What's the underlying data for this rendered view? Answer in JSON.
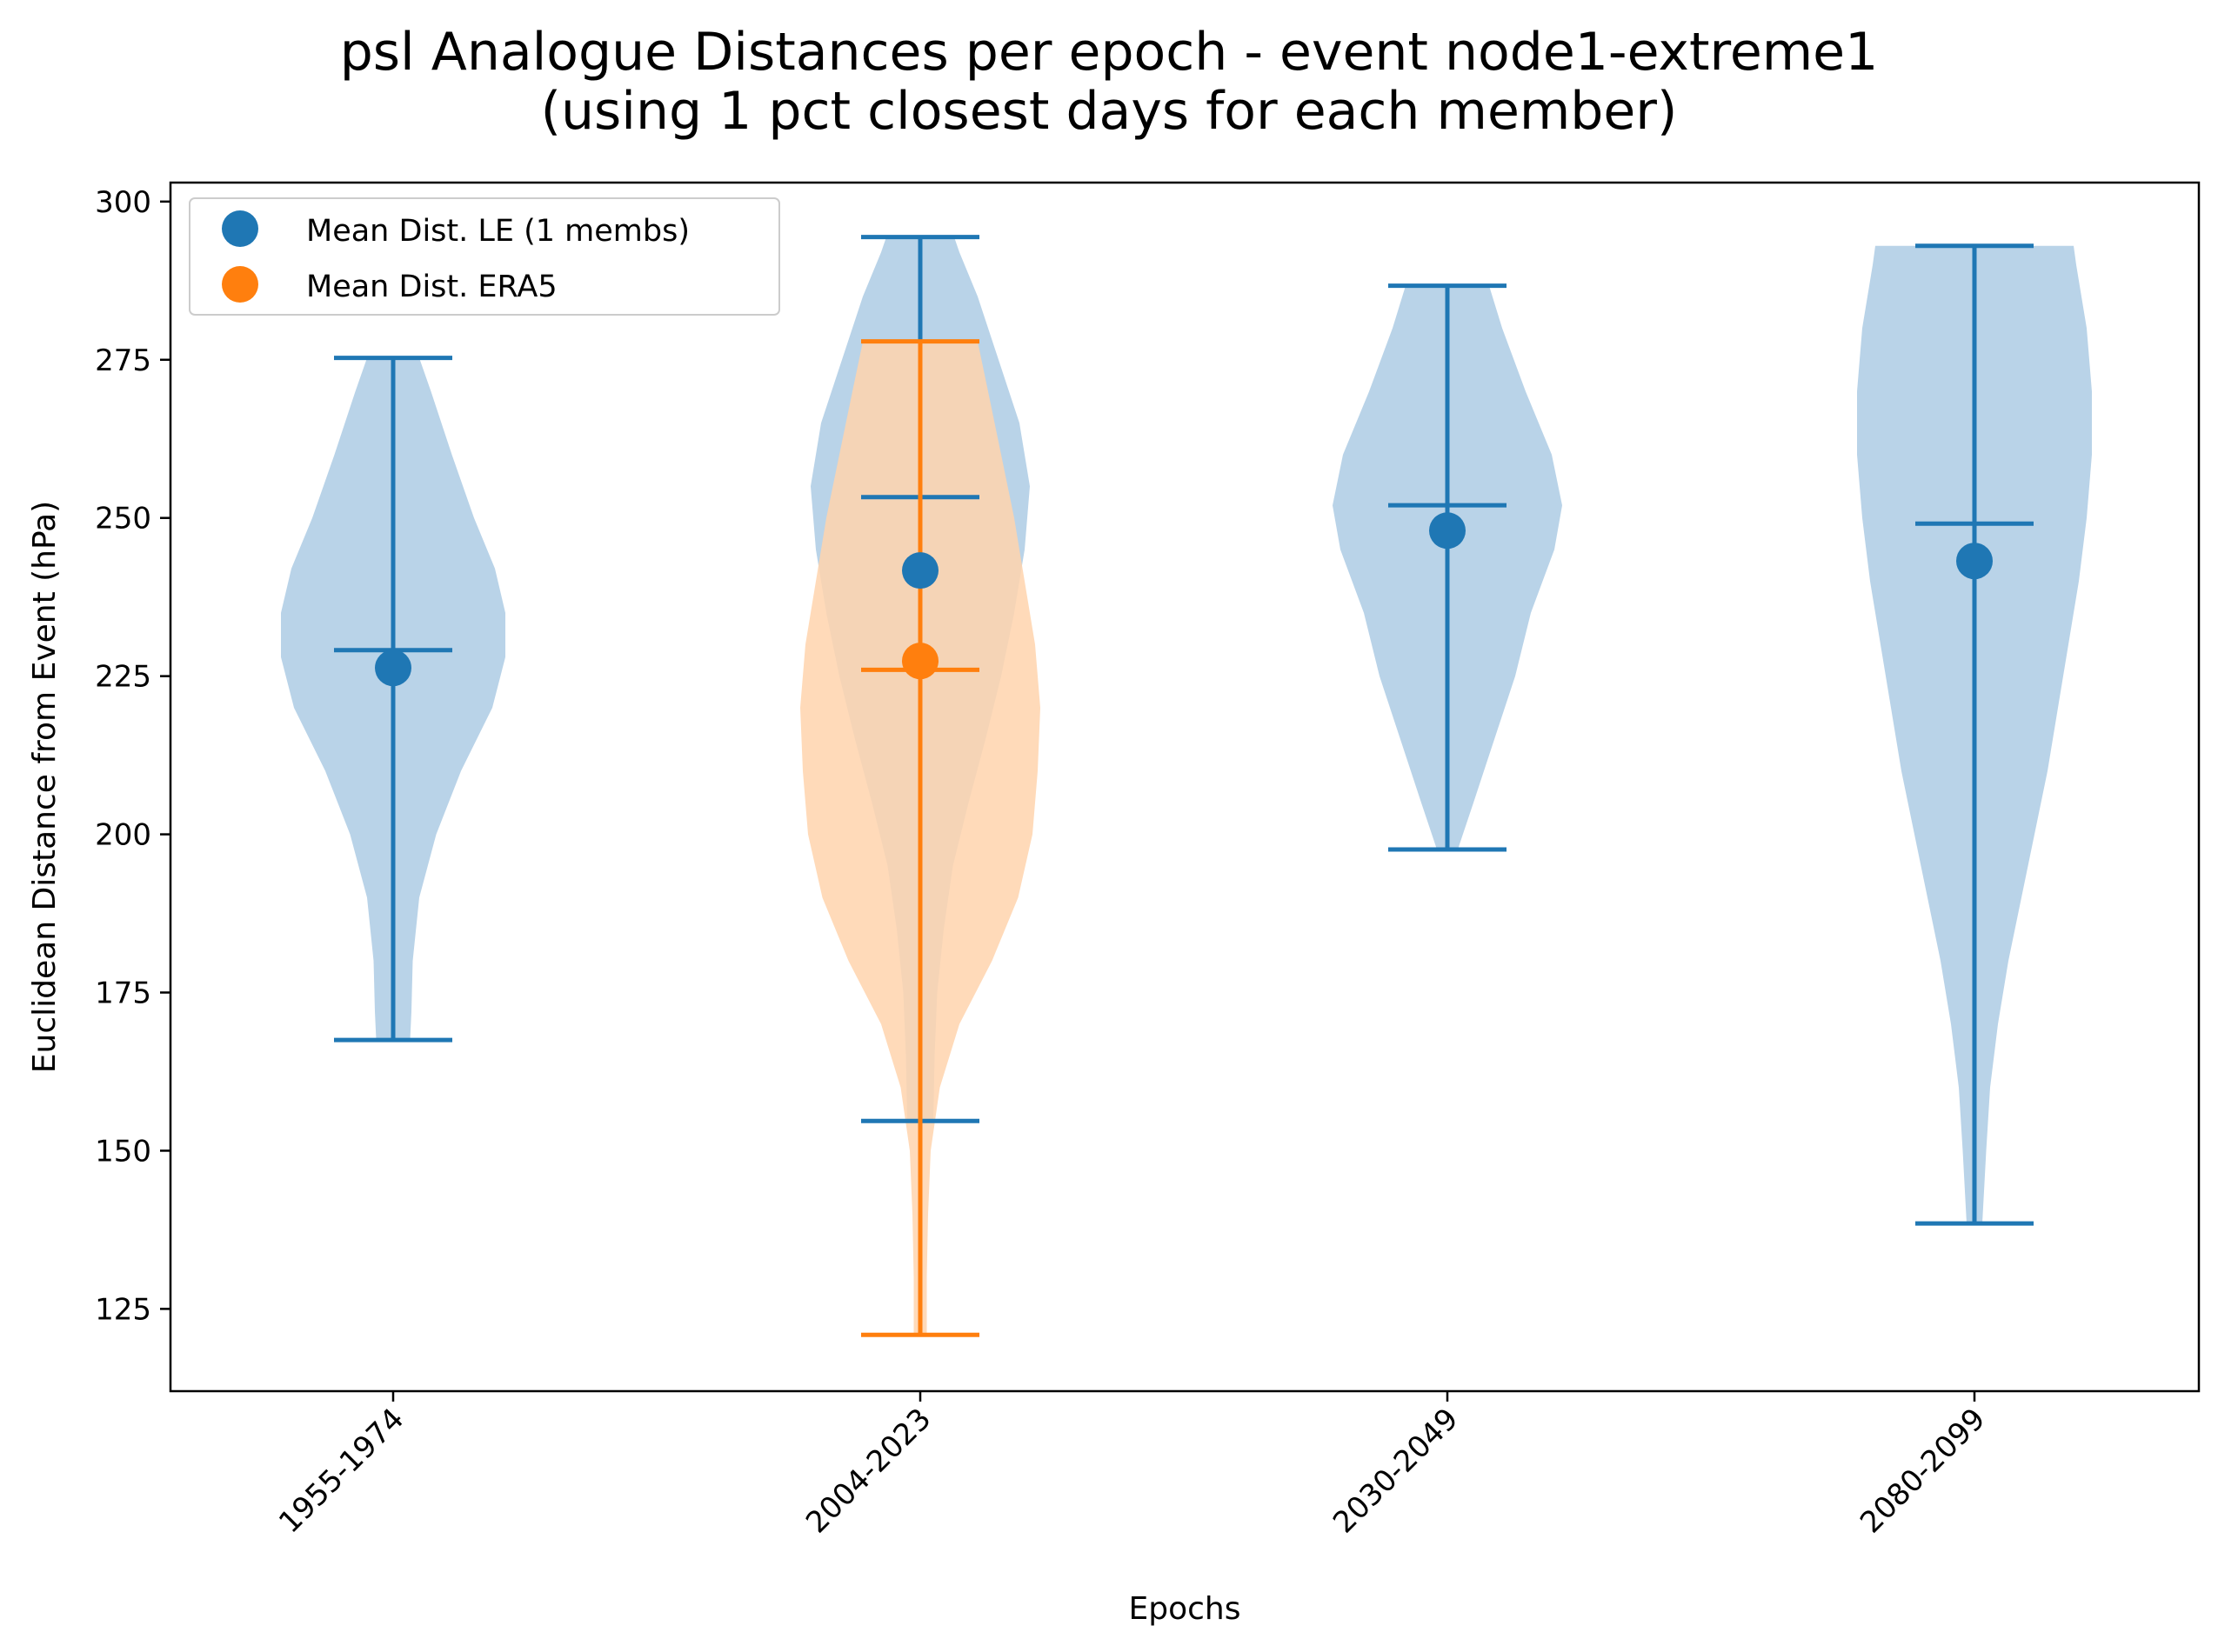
{
  "chart_data": {
    "type": "violin",
    "title": [
      "psl Analogue Distances per epoch - event node1-extreme1",
      "(using 1 pct closest days for each member)"
    ],
    "xlabel": "Epochs",
    "ylabel": "Euclidean Distance from Event (hPa)",
    "ylim": [
      112,
      303
    ],
    "yticks": [
      125,
      150,
      175,
      200,
      225,
      250,
      275,
      300
    ],
    "categories": [
      "1955-1974",
      "2004-2023",
      "2030-2049",
      "2080-2099"
    ],
    "grid": false,
    "legend": {
      "placement": "upper left",
      "entries": [
        {
          "label": "Mean Dist. LE (1 membs)",
          "color": "#1f77b4"
        },
        {
          "label": "Mean Dist. ERA5",
          "color": "#ff7f0e"
        }
      ]
    },
    "series": [
      {
        "name": "Mean Dist. LE (1 membs)",
        "color": "#1f77b4",
        "fill": "#b9d3e8",
        "violins": [
          {
            "category": "1955-1974",
            "min": 167.5,
            "max": 275.3,
            "median": 229.1,
            "mean": 226.3,
            "profile": [
              [
                167.5,
                0.13
              ],
              [
                172,
                0.14
              ],
              [
                180,
                0.15
              ],
              [
                190,
                0.2
              ],
              [
                200,
                0.33
              ],
              [
                210,
                0.52
              ],
              [
                220,
                0.76
              ],
              [
                228,
                0.86
              ],
              [
                235,
                0.86
              ],
              [
                242,
                0.78
              ],
              [
                250,
                0.62
              ],
              [
                260,
                0.45
              ],
              [
                270,
                0.29
              ],
              [
                275.3,
                0.2
              ]
            ]
          },
          {
            "category": "2004-2023",
            "min": 154.7,
            "max": 294.4,
            "median": 253.3,
            "mean": 241.7,
            "profile": [
              [
                154.7,
                0.1
              ],
              [
                165,
                0.11
              ],
              [
                175,
                0.13
              ],
              [
                185,
                0.18
              ],
              [
                195,
                0.25
              ],
              [
                205,
                0.37
              ],
              [
                215,
                0.5
              ],
              [
                225,
                0.62
              ],
              [
                235,
                0.72
              ],
              [
                245,
                0.8
              ],
              [
                255,
                0.84
              ],
              [
                265,
                0.76
              ],
              [
                275,
                0.6
              ],
              [
                285,
                0.44
              ],
              [
                292,
                0.3
              ],
              [
                294.4,
                0.26
              ]
            ]
          },
          {
            "category": "2030-2049",
            "min": 197.6,
            "max": 286.7,
            "median": 252.0,
            "mean": 248.0,
            "profile": [
              [
                197.6,
                0.08
              ],
              [
                205,
                0.2
              ],
              [
                215,
                0.36
              ],
              [
                225,
                0.52
              ],
              [
                235,
                0.64
              ],
              [
                245,
                0.82
              ],
              [
                252,
                0.88
              ],
              [
                260,
                0.8
              ],
              [
                270,
                0.6
              ],
              [
                280,
                0.42
              ],
              [
                286.7,
                0.32
              ]
            ]
          },
          {
            "category": "2080-2099",
            "min": 138.5,
            "max": 293.0,
            "median": 249.1,
            "mean": 243.2,
            "profile": [
              [
                138.5,
                0.06
              ],
              [
                150,
                0.09
              ],
              [
                160,
                0.12
              ],
              [
                170,
                0.18
              ],
              [
                180,
                0.26
              ],
              [
                190,
                0.36
              ],
              [
                200,
                0.46
              ],
              [
                210,
                0.56
              ],
              [
                220,
                0.64
              ],
              [
                230,
                0.72
              ],
              [
                240,
                0.8
              ],
              [
                250,
                0.86
              ],
              [
                260,
                0.9
              ],
              [
                270,
                0.9
              ],
              [
                280,
                0.86
              ],
              [
                290,
                0.78
              ],
              [
                293,
                0.76
              ]
            ]
          }
        ]
      },
      {
        "name": "Mean Dist. ERA5",
        "color": "#ff7f0e",
        "fill": "#ffd4ad",
        "violins": [
          {
            "category": "2004-2023",
            "min": 120.9,
            "max": 277.9,
            "median": 226.0,
            "mean": 227.4,
            "profile": [
              [
                120.9,
                0.05
              ],
              [
                130,
                0.05
              ],
              [
                140,
                0.06
              ],
              [
                150,
                0.08
              ],
              [
                160,
                0.15
              ],
              [
                170,
                0.3
              ],
              [
                180,
                0.55
              ],
              [
                190,
                0.75
              ],
              [
                200,
                0.86
              ],
              [
                210,
                0.9
              ],
              [
                220,
                0.92
              ],
              [
                230,
                0.88
              ],
              [
                240,
                0.8
              ],
              [
                250,
                0.72
              ],
              [
                260,
                0.62
              ],
              [
                270,
                0.52
              ],
              [
                277.9,
                0.44
              ]
            ]
          }
        ]
      }
    ]
  }
}
